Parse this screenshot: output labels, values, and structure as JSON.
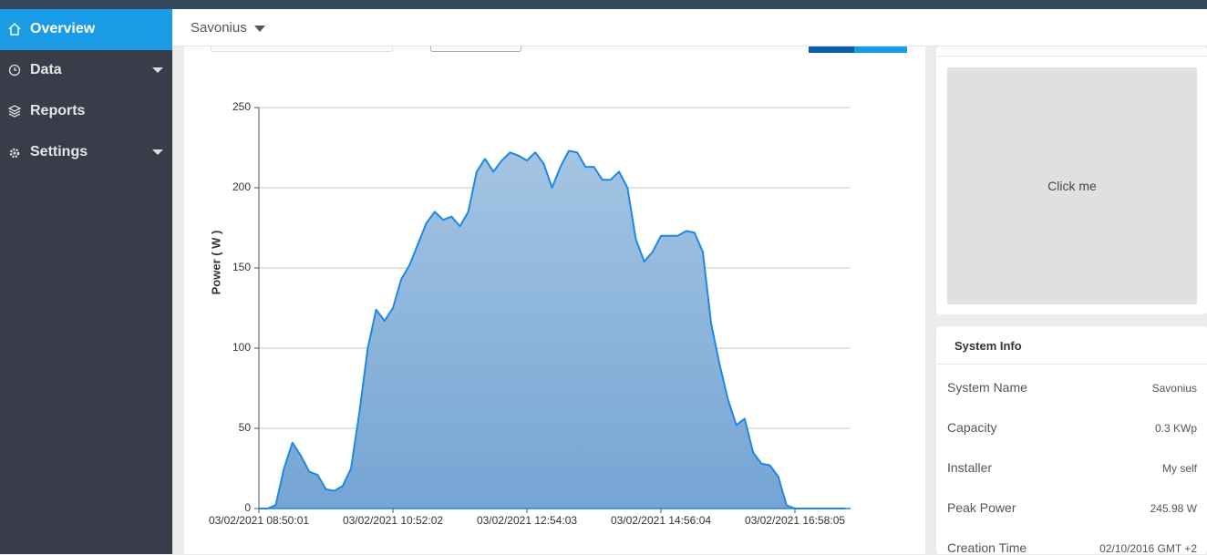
{
  "sidebar": {
    "items": [
      "Overview",
      "Data",
      "Reports",
      "Settings"
    ]
  },
  "header": {
    "site": "Savonius"
  },
  "chart_data": {
    "type": "area",
    "y_label": "Power ( W )",
    "color": "#1e88e5",
    "grid": true,
    "categories": [
      "03/02/2021 08:50:01",
      null,
      null,
      null,
      null,
      null,
      null,
      null,
      null,
      null,
      null,
      null,
      null,
      null,
      null,
      null,
      "03/02/2021 10:52:02",
      null,
      null,
      null,
      null,
      null,
      null,
      null,
      null,
      null,
      null,
      null,
      null,
      null,
      null,
      null,
      "03/02/2021 12:54:03",
      null,
      null,
      null,
      null,
      null,
      null,
      null,
      null,
      null,
      null,
      null,
      null,
      null,
      null,
      null,
      "03/02/2021 14:56:04",
      null,
      null,
      null,
      null,
      null,
      null,
      null,
      null,
      null,
      null,
      null,
      null,
      null,
      null,
      null,
      "03/02/2021 16:58:05",
      null,
      null,
      null,
      null,
      null,
      null
    ],
    "values": [
      0,
      0,
      2,
      25,
      41,
      33,
      23,
      21,
      12,
      11,
      14,
      25,
      60,
      100,
      124,
      117,
      125,
      143,
      152,
      165,
      178,
      185,
      180,
      182,
      176,
      185,
      210,
      218,
      210,
      217,
      222,
      220,
      217,
      222,
      215,
      200,
      213,
      223,
      222,
      213,
      213,
      205,
      205,
      210,
      200,
      168,
      154,
      160,
      170,
      170,
      170,
      173,
      172,
      160,
      115,
      90,
      68,
      52,
      56,
      35,
      28,
      27,
      20,
      2,
      0,
      0,
      0,
      0,
      0,
      0,
      0
    ],
    "ylim": [
      0,
      250
    ],
    "yticks": [
      0,
      50,
      100,
      150,
      200,
      250
    ]
  },
  "tile": {
    "label": "Click me"
  },
  "system_info": {
    "title": "System Info",
    "rows": [
      [
        "System Name",
        "Savonius"
      ],
      [
        "Capacity",
        "0.3 KWp"
      ],
      [
        "Installer",
        "My self"
      ],
      [
        "Peak Power",
        "245.98 W"
      ],
      [
        "Creation Time",
        "02/10/2016 GMT +2"
      ]
    ]
  }
}
